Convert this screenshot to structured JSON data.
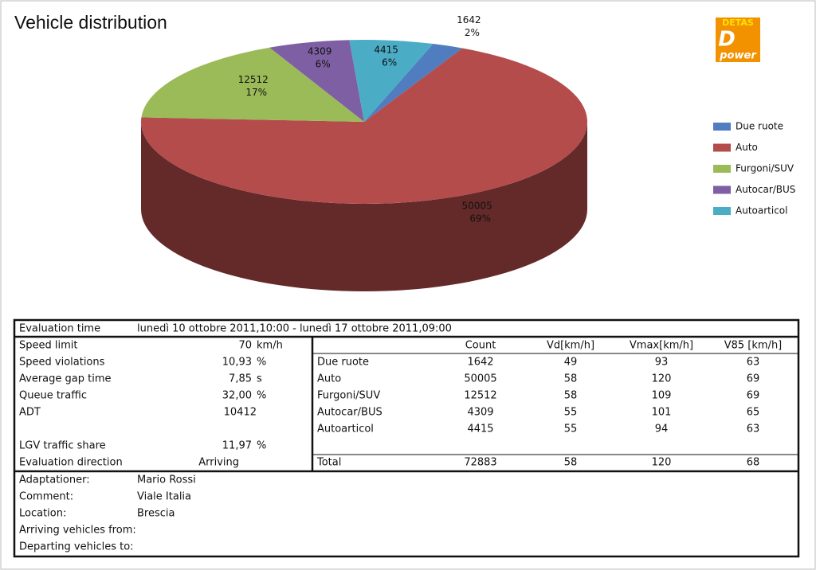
{
  "chart_data": {
    "type": "pie",
    "title": "Vehicle distribution",
    "categories": [
      "Due ruote",
      "Auto",
      "Furgoni/SUV",
      "Autocar/BUS",
      "Autoarticol"
    ],
    "values": [
      1642,
      50005,
      12512,
      4309,
      4415
    ],
    "percent_labels": [
      "2%",
      "69%",
      "17%",
      "6%",
      "6%"
    ],
    "colors": [
      "#4f7dc0",
      "#b54c4c",
      "#9bbb59",
      "#7e5fa3",
      "#4bacc6"
    ],
    "legend": "right"
  },
  "logo": {
    "top": "DETAS",
    "letter": "D",
    "word": "power"
  },
  "table": {
    "evaluation_time": {
      "label": "Evaluation time",
      "value": "lunedì 10 ottobre 2011,10:00  -  lunedì 17 ottobre 2011,09:00"
    },
    "params": [
      {
        "label": "Speed limit",
        "value": 70,
        "unit": "km/h"
      },
      {
        "label": "Speed violations",
        "value": "10,93",
        "unit": "%"
      },
      {
        "label": "Average gap time",
        "value": "7,85",
        "unit": "s"
      },
      {
        "label": "Queue traffic",
        "value": "32,00",
        "unit": "%"
      },
      {
        "label": "ADT",
        "value": 10412
      },
      {
        "label": "LGV traffic share",
        "value": "11,97",
        "unit": "%"
      },
      {
        "label": "Evaluation direction",
        "value": "Arriving"
      }
    ],
    "columns": [
      "Count",
      "Vd[km/h]",
      "Vmax[km/h]",
      "V85 [km/h]"
    ],
    "rows": [
      {
        "name": "Due ruote",
        "values": [
          1642,
          49,
          93,
          63
        ]
      },
      {
        "name": "Auto",
        "values": [
          50005,
          58,
          120,
          69
        ]
      },
      {
        "name": "Furgoni/SUV",
        "values": [
          12512,
          58,
          109,
          69
        ]
      },
      {
        "name": "Autocar/BUS",
        "values": [
          4309,
          55,
          101,
          65
        ]
      },
      {
        "name": "Autoarticol",
        "values": [
          4415,
          55,
          94,
          63
        ]
      }
    ],
    "total": {
      "name": "Total",
      "values": [
        72883,
        58,
        120,
        68
      ]
    },
    "info": [
      {
        "label": "Adaptationer:",
        "value": "Mario Rossi"
      },
      {
        "label": "Comment:",
        "value": "Viale Italia"
      },
      {
        "label": "Location:",
        "value": "Brescia"
      },
      {
        "label": "Arriving vehicles from:"
      },
      {
        "label": "Departing vehicles to:"
      }
    ]
  }
}
